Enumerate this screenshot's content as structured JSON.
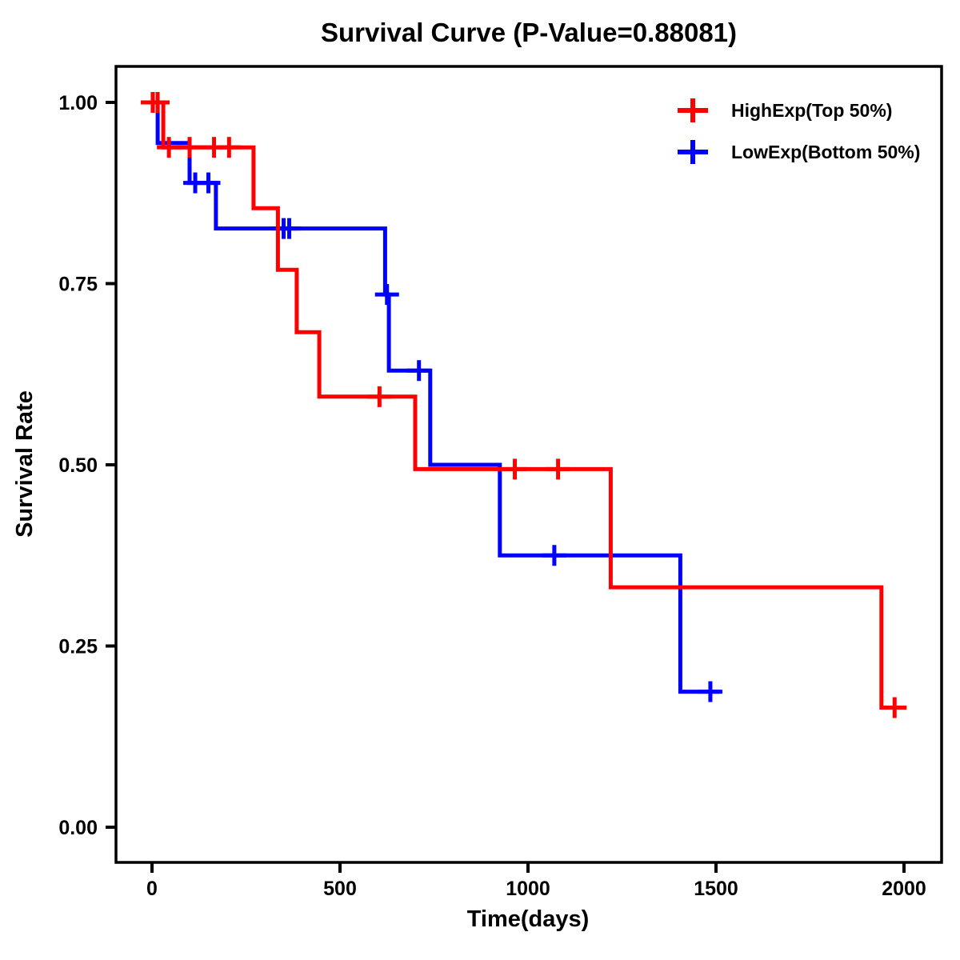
{
  "chart_data": {
    "type": "line",
    "variant": "kaplan_meier_step_curve",
    "title": "Survival Curve (P-Value=0.88081)",
    "p_value": "0.88081",
    "xlabel": "Time(days)",
    "ylabel": "Survival Rate",
    "xlim": [
      0,
      2000
    ],
    "ylim": [
      0.0,
      1.0
    ],
    "xticks": {
      "values": [
        0,
        500,
        1000,
        1500,
        2000
      ],
      "labels": [
        "0",
        "500",
        "1000",
        "1500",
        "2000"
      ]
    },
    "yticks": {
      "values": [
        1.0,
        0.75,
        0.5,
        0.25,
        0.0
      ],
      "labels": [
        "1.00",
        "0.75",
        "0.50",
        "0.25",
        "0.00"
      ]
    },
    "grid": false,
    "frame": true,
    "legend_position": "top-right",
    "series": [
      {
        "name": "HighExp(Top 50%)",
        "color": "#ff0000",
        "marker": "plus-censor",
        "steps": [
          [
            0,
            1.0
          ],
          [
            30,
            1.0
          ],
          [
            30,
            0.938
          ],
          [
            270,
            0.938
          ],
          [
            270,
            0.854
          ],
          [
            335,
            0.854
          ],
          [
            335,
            0.769
          ],
          [
            385,
            0.769
          ],
          [
            385,
            0.683
          ],
          [
            445,
            0.683
          ],
          [
            445,
            0.594
          ],
          [
            700,
            0.594
          ],
          [
            700,
            0.494
          ],
          [
            1220,
            0.494
          ],
          [
            1220,
            0.331
          ],
          [
            1940,
            0.331
          ],
          [
            1940,
            0.165
          ],
          [
            2000,
            0.165
          ]
        ],
        "censors": [
          [
            2,
            1.0
          ],
          [
            15,
            1.0
          ],
          [
            45,
            0.938
          ],
          [
            100,
            0.938
          ],
          [
            165,
            0.938
          ],
          [
            205,
            0.938
          ],
          [
            605,
            0.594
          ],
          [
            965,
            0.494
          ],
          [
            1080,
            0.494
          ],
          [
            1975,
            0.165
          ]
        ]
      },
      {
        "name": "LowExp(Bottom 50%)",
        "color": "#0000ff",
        "marker": "plus-censor",
        "steps": [
          [
            0,
            1.0
          ],
          [
            15,
            1.0
          ],
          [
            15,
            0.944
          ],
          [
            100,
            0.944
          ],
          [
            100,
            0.889
          ],
          [
            170,
            0.889
          ],
          [
            170,
            0.826
          ],
          [
            620,
            0.826
          ],
          [
            620,
            0.735
          ],
          [
            630,
            0.735
          ],
          [
            630,
            0.63
          ],
          [
            740,
            0.63
          ],
          [
            740,
            0.5
          ],
          [
            925,
            0.5
          ],
          [
            925,
            0.375
          ],
          [
            1405,
            0.375
          ],
          [
            1405,
            0.187
          ],
          [
            1510,
            0.187
          ]
        ],
        "censors": [
          [
            115,
            0.889
          ],
          [
            150,
            0.889
          ],
          [
            350,
            0.826
          ],
          [
            365,
            0.826
          ],
          [
            625,
            0.735
          ],
          [
            710,
            0.63
          ],
          [
            1070,
            0.375
          ],
          [
            1485,
            0.187
          ]
        ]
      }
    ]
  }
}
